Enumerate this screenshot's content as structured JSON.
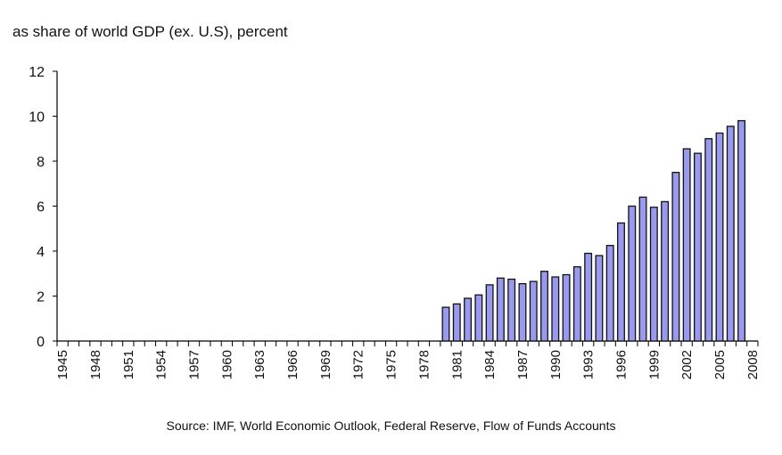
{
  "chart_data": {
    "type": "bar",
    "title": "as share of world GDP (ex. U.S), percent",
    "source": "Source: IMF, World Economic Outlook, Federal Reserve, Flow of Funds Accounts",
    "x_range": [
      1945,
      2008
    ],
    "x_tick_labels": [
      "1945",
      "1948",
      "1951",
      "1954",
      "1957",
      "1960",
      "1963",
      "1966",
      "1969",
      "1972",
      "1975",
      "1978",
      "1981",
      "1984",
      "1987",
      "1990",
      "1993",
      "1996",
      "1999",
      "2002",
      "2005",
      "2008"
    ],
    "ylim": [
      0,
      12
    ],
    "y_ticks": [
      0,
      2,
      4,
      6,
      8,
      10,
      12
    ],
    "grid": false,
    "bar_color": "#9999ee",
    "categories": [
      1980,
      1981,
      1982,
      1983,
      1984,
      1985,
      1986,
      1987,
      1988,
      1989,
      1990,
      1991,
      1992,
      1993,
      1994,
      1995,
      1996,
      1997,
      1998,
      1999,
      2000,
      2001,
      2002,
      2003,
      2004,
      2005,
      2006,
      2007
    ],
    "values": [
      1.5,
      1.65,
      1.9,
      2.05,
      2.5,
      2.8,
      2.75,
      2.55,
      2.65,
      3.1,
      2.85,
      2.95,
      3.3,
      3.9,
      3.8,
      4.25,
      5.25,
      6.0,
      6.4,
      5.95,
      6.2,
      7.5,
      8.55,
      8.35,
      9.0,
      9.25,
      9.55,
      9.8
    ]
  }
}
